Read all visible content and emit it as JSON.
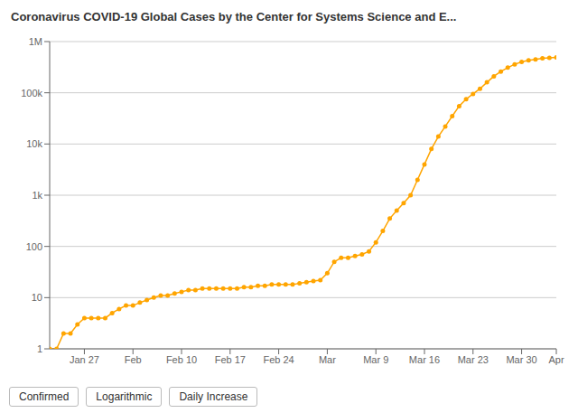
{
  "chart_data": {
    "type": "line",
    "title": "Coronavirus COVID-19 Global Cases by the Center for Systems Science and E...",
    "annotations": [
      "Confirmed",
      "Logarithmic",
      "Daily Increase"
    ],
    "x": [
      0,
      1,
      2,
      3,
      4,
      5,
      6,
      7,
      8,
      9,
      10,
      11,
      12,
      13,
      14,
      15,
      16,
      17,
      18,
      19,
      20,
      21,
      22,
      23,
      24,
      25,
      26,
      27,
      28,
      29,
      30,
      31,
      32,
      33,
      34,
      35,
      36,
      37,
      38,
      39,
      40,
      41,
      42,
      43,
      44,
      45,
      46,
      47,
      48,
      49,
      50,
      51,
      52,
      53,
      54,
      55,
      56,
      57,
      58,
      59,
      60,
      61,
      62,
      63,
      64,
      65,
      66,
      67,
      68,
      69,
      70,
      71,
      72,
      73
    ],
    "values": [
      1,
      1,
      2,
      2,
      3,
      4,
      4,
      4,
      4,
      5,
      6,
      7,
      7,
      8,
      9,
      10,
      11,
      11,
      12,
      13,
      14,
      14,
      15,
      15,
      15,
      15,
      15,
      15,
      16,
      16,
      17,
      17,
      18,
      18,
      18,
      18,
      19,
      20,
      21,
      22,
      30,
      50,
      60,
      60,
      65,
      70,
      80,
      120,
      200,
      350,
      500,
      700,
      1000,
      2000,
      4000,
      8000,
      14000,
      22000,
      35000,
      55000,
      75000,
      95000,
      120000,
      160000,
      210000,
      260000,
      310000,
      360000,
      400000,
      430000,
      450000,
      470000,
      480000,
      490000
    ],
    "color": "#FFA500",
    "marker": "circle",
    "line_style": "solid",
    "log": "y",
    "grid": true,
    "xlim": [
      0,
      73
    ],
    "xticks": [
      {
        "value": 5,
        "label": "Jan 27"
      },
      {
        "value": 12,
        "label": "Feb"
      },
      {
        "value": 19,
        "label": "Feb 10"
      },
      {
        "value": 26,
        "label": "Feb 17"
      },
      {
        "value": 33,
        "label": "Feb 24"
      },
      {
        "value": 40,
        "label": "Mar"
      },
      {
        "value": 47,
        "label": "Mar 9"
      },
      {
        "value": 54,
        "label": "Mar 16"
      },
      {
        "value": 61,
        "label": "Mar 23"
      },
      {
        "value": 68,
        "label": "Mar 30"
      },
      {
        "value": 73,
        "label": "Apr"
      }
    ],
    "ylim": [
      1,
      1000000
    ],
    "yticks": [
      1,
      10,
      100,
      {
        "value": 1000,
        "label": "1k"
      },
      {
        "value": 10000,
        "label": "10k"
      },
      {
        "value": 100000,
        "label": "100k"
      },
      {
        "value": 1000000,
        "label": "1M"
      }
    ]
  }
}
